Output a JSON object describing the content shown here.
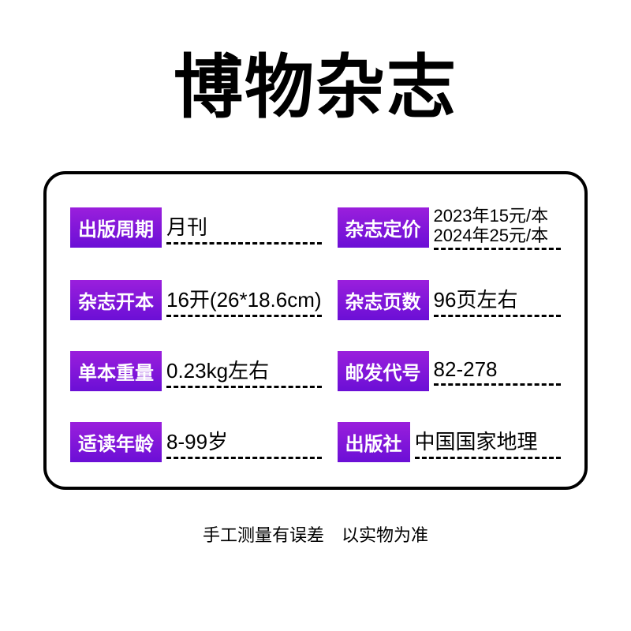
{
  "title": "博物杂志",
  "rows": [
    {
      "label": "出版周期",
      "value": "月刊"
    },
    {
      "label": "杂志定价",
      "value_lines": [
        "2023年15元/本",
        "2024年25元/本"
      ]
    },
    {
      "label": "杂志开本",
      "value": "16开(26*18.6cm)"
    },
    {
      "label": "杂志页数",
      "value": "96页左右"
    },
    {
      "label": "单本重量",
      "value": "0.23kg左右"
    },
    {
      "label": "邮发代号",
      "value": "82-278"
    },
    {
      "label": "适读年龄",
      "value": "8-99岁"
    },
    {
      "label": "出版社",
      "value": "中国国家地理"
    }
  ],
  "footer": "手工测量有误差　以实物为准",
  "style": {
    "badge_gradient_top": "#9a1fdc",
    "badge_gradient_bottom": "#6b0fd6",
    "badge_text_color": "#ffffff",
    "border_color": "#000000",
    "border_radius": 28,
    "title_fontsize": 88,
    "badge_fontsize": 24,
    "value_fontsize": 26,
    "footer_fontsize": 22,
    "background": "#ffffff"
  }
}
